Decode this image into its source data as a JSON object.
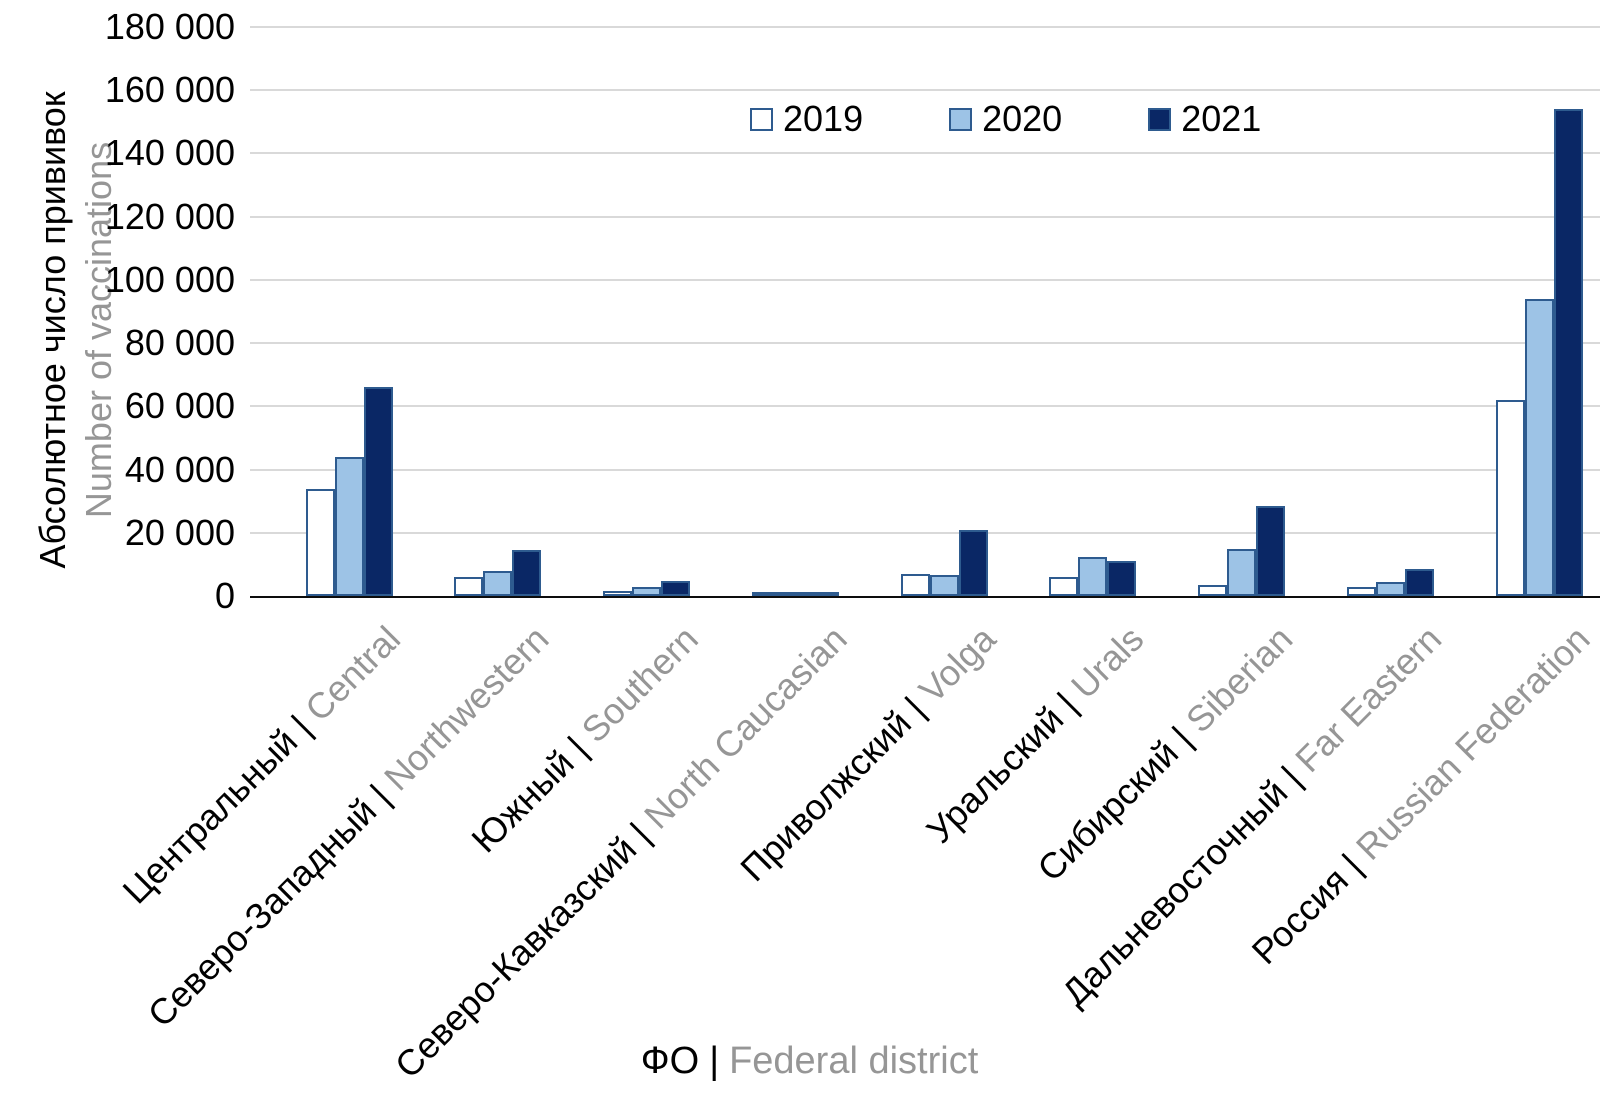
{
  "chart_data": {
    "type": "bar",
    "title": "",
    "ylabel_ru": "Абсолютное число прививок",
    "ylabel_en": "Number of vaccinations",
    "xlabel_ru": "ФО",
    "xlabel_en": "Federal district",
    "separator": "|",
    "ylim": [
      0,
      180000
    ],
    "ytick_step": 20000,
    "ytick_labels": [
      "0",
      "20 000",
      "40 000",
      "60 000",
      "80 000",
      "100 000",
      "120 000",
      "140 000",
      "160 000",
      "180 000"
    ],
    "grid": "horizontal",
    "legend_position": "top-center",
    "categories": [
      {
        "ru": "Центральный",
        "en": "Central"
      },
      {
        "ru": "Северо-Западный",
        "en": "Northwestern"
      },
      {
        "ru": "Южный",
        "en": "Southern"
      },
      {
        "ru": "Северо-Кавказский",
        "en": "North Caucasian"
      },
      {
        "ru": "Приволжский",
        "en": "Volga"
      },
      {
        "ru": "Уральский",
        "en": "Urals"
      },
      {
        "ru": "Сибирский",
        "en": "Siberian"
      },
      {
        "ru": "Дальневосточный",
        "en": "Far Eastern"
      },
      {
        "ru": "Россия",
        "en": "Russian Federation"
      }
    ],
    "series": [
      {
        "name": "2019",
        "fill": "#ffffff",
        "values": [
          34000,
          6000,
          1500,
          500,
          7000,
          6000,
          3500,
          3000,
          62000
        ]
      },
      {
        "name": "2020",
        "fill": "#9dc3e6",
        "values": [
          44000,
          8000,
          2700,
          700,
          6500,
          12300,
          15000,
          4500,
          94000
        ]
      },
      {
        "name": "2021",
        "fill": "#0a2765",
        "values": [
          66000,
          14500,
          4700,
          1200,
          21000,
          11000,
          28500,
          8500,
          154000
        ]
      }
    ],
    "colors": {
      "bar_border": "#2e5b8f",
      "gridline": "#d9d9d9",
      "axis_line": "#0d0d0d",
      "primary_text": "#000000",
      "secondary_text": "#969696"
    }
  }
}
